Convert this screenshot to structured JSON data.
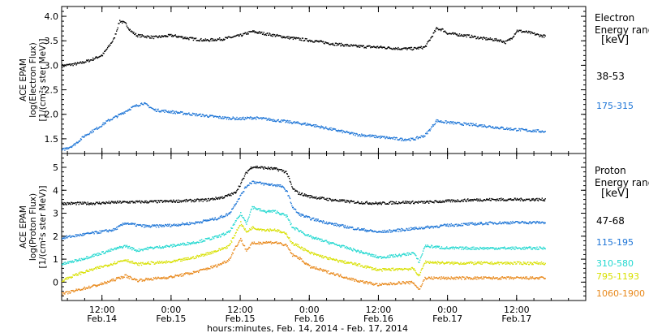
{
  "chart_data": [
    {
      "type": "scatter",
      "ylabel_lines": [
        "ACE EPAM",
        "log(Electron Flux)",
        "[1/(cm²s ster MeV)]"
      ],
      "ylim": [
        1.2,
        4.2
      ],
      "yticks": [
        "1.5",
        "2.0",
        "2.5",
        "3.0",
        "3.5",
        "4.0"
      ],
      "ytick_values": [
        1.5,
        2.0,
        2.5,
        3.0,
        3.5,
        4.0
      ],
      "legend_title_lines": [
        "Electron",
        "Energy ranges",
        "[keV]"
      ],
      "series": [
        {
          "name": "38-53",
          "color": "#000000",
          "points": [
            [
              5.0,
              3.0
            ],
            [
              8,
              3.05
            ],
            [
              10,
              3.12
            ],
            [
              12,
              3.22
            ],
            [
              13,
              3.38
            ],
            [
              14,
              3.55
            ],
            [
              15,
              3.92
            ],
            [
              16,
              3.86
            ],
            [
              17,
              3.7
            ],
            [
              18,
              3.62
            ],
            [
              21,
              3.58
            ],
            [
              24,
              3.62
            ],
            [
              27,
              3.56
            ],
            [
              30,
              3.52
            ],
            [
              33,
              3.55
            ],
            [
              36,
              3.62
            ],
            [
              38,
              3.7
            ],
            [
              40,
              3.66
            ],
            [
              44,
              3.58
            ],
            [
              48,
              3.52
            ],
            [
              52,
              3.45
            ],
            [
              56,
              3.4
            ],
            [
              60,
              3.38
            ],
            [
              64,
              3.35
            ],
            [
              66,
              3.35
            ],
            [
              68,
              3.38
            ],
            [
              69,
              3.56
            ],
            [
              70,
              3.76
            ],
            [
              71,
              3.74
            ],
            [
              72,
              3.66
            ],
            [
              75,
              3.62
            ],
            [
              78,
              3.56
            ],
            [
              81,
              3.52
            ],
            [
              82,
              3.48
            ],
            [
              83,
              3.56
            ],
            [
              84,
              3.72
            ],
            [
              86,
              3.68
            ],
            [
              88,
              3.62
            ],
            [
              89,
              3.6
            ]
          ]
        },
        {
          "name": "175-315",
          "color": "#1c74d6",
          "points": [
            [
              5.0,
              1.28
            ],
            [
              7,
              1.38
            ],
            [
              9,
              1.58
            ],
            [
              11,
              1.72
            ],
            [
              13,
              1.88
            ],
            [
              15,
              2.0
            ],
            [
              17,
              2.14
            ],
            [
              19,
              2.24
            ],
            [
              20,
              2.18
            ],
            [
              21,
              2.1
            ],
            [
              24,
              2.06
            ],
            [
              27,
              2.02
            ],
            [
              30,
              1.98
            ],
            [
              33,
              1.94
            ],
            [
              36,
              1.92
            ],
            [
              38,
              1.94
            ],
            [
              40,
              1.92
            ],
            [
              44,
              1.86
            ],
            [
              48,
              1.8
            ],
            [
              52,
              1.7
            ],
            [
              56,
              1.6
            ],
            [
              60,
              1.55
            ],
            [
              64,
              1.5
            ],
            [
              66,
              1.5
            ],
            [
              68,
              1.58
            ],
            [
              69,
              1.72
            ],
            [
              70,
              1.88
            ],
            [
              71,
              1.86
            ],
            [
              74,
              1.82
            ],
            [
              78,
              1.78
            ],
            [
              82,
              1.72
            ],
            [
              86,
              1.68
            ],
            [
              89,
              1.66
            ]
          ]
        }
      ]
    },
    {
      "type": "scatter",
      "ylabel_lines": [
        "ACE EPAM",
        "log(Proton Flux)",
        "[1/(cm²s ster MeV)]"
      ],
      "ylim": [
        -0.8,
        5.6
      ],
      "yticks": [
        "0",
        "1",
        "2",
        "3",
        "4",
        "5"
      ],
      "ytick_values": [
        0,
        1,
        2,
        3,
        4,
        5
      ],
      "legend_title_lines": [
        "Proton",
        "Energy ranges",
        "[keV]"
      ],
      "xlim": [
        5.0,
        96
      ],
      "xticks": [
        {
          "value": 12,
          "time": "12:00",
          "date": "Feb.14"
        },
        {
          "value": 24,
          "time": "0:00",
          "date": "Feb.15"
        },
        {
          "value": 36,
          "time": "12:00",
          "date": "Feb.15"
        },
        {
          "value": 48,
          "time": "0:00",
          "date": "Feb.16"
        },
        {
          "value": 60,
          "time": "12:00",
          "date": "Feb.16"
        },
        {
          "value": 72,
          "time": "0:00",
          "date": "Feb.17"
        },
        {
          "value": 84,
          "time": "12:00",
          "date": "Feb.17"
        }
      ],
      "xlabel": "hours:minutes, Feb. 14, 2014 - Feb. 17, 2014",
      "series": [
        {
          "name": "47-68",
          "color": "#000000",
          "points": [
            [
              5.0,
              3.45
            ],
            [
              10,
              3.45
            ],
            [
              15,
              3.5
            ],
            [
              20,
              3.52
            ],
            [
              25,
              3.55
            ],
            [
              30,
              3.6
            ],
            [
              33,
              3.72
            ],
            [
              35,
              3.9
            ],
            [
              36,
              4.3
            ],
            [
              37,
              4.8
            ],
            [
              38,
              5.05
            ],
            [
              40,
              5.0
            ],
            [
              42,
              4.95
            ],
            [
              43,
              4.9
            ],
            [
              44,
              4.8
            ],
            [
              45,
              4.1
            ],
            [
              46,
              3.9
            ],
            [
              48,
              3.75
            ],
            [
              52,
              3.6
            ],
            [
              56,
              3.5
            ],
            [
              60,
              3.45
            ],
            [
              64,
              3.5
            ],
            [
              68,
              3.5
            ],
            [
              72,
              3.55
            ],
            [
              76,
              3.6
            ],
            [
              80,
              3.62
            ],
            [
              84,
              3.62
            ],
            [
              89,
              3.62
            ]
          ]
        },
        {
          "name": "115-195",
          "color": "#1c74d6",
          "points": [
            [
              5.0,
              1.95
            ],
            [
              10,
              2.15
            ],
            [
              14,
              2.3
            ],
            [
              16,
              2.6
            ],
            [
              18,
              2.5
            ],
            [
              20,
              2.45
            ],
            [
              24,
              2.5
            ],
            [
              28,
              2.6
            ],
            [
              32,
              2.8
            ],
            [
              34,
              3.0
            ],
            [
              35,
              3.4
            ],
            [
              36,
              3.8
            ],
            [
              37,
              4.2
            ],
            [
              38,
              4.4
            ],
            [
              40,
              4.3
            ],
            [
              42,
              4.25
            ],
            [
              43,
              4.2
            ],
            [
              44,
              4.0
            ],
            [
              45,
              3.3
            ],
            [
              46,
              3.0
            ],
            [
              48,
              2.8
            ],
            [
              52,
              2.55
            ],
            [
              56,
              2.35
            ],
            [
              60,
              2.2
            ],
            [
              64,
              2.3
            ],
            [
              68,
              2.4
            ],
            [
              72,
              2.5
            ],
            [
              76,
              2.55
            ],
            [
              80,
              2.6
            ],
            [
              84,
              2.62
            ],
            [
              89,
              2.62
            ]
          ]
        },
        {
          "name": "310-580",
          "color": "#22d8d0",
          "points": [
            [
              5.0,
              0.8
            ],
            [
              8,
              1.0
            ],
            [
              12,
              1.3
            ],
            [
              16,
              1.6
            ],
            [
              18,
              1.4
            ],
            [
              20,
              1.5
            ],
            [
              24,
              1.6
            ],
            [
              28,
              1.75
            ],
            [
              32,
              2.0
            ],
            [
              34,
              2.2
            ],
            [
              35,
              2.6
            ],
            [
              36,
              3.0
            ],
            [
              37,
              2.6
            ],
            [
              38,
              3.3
            ],
            [
              40,
              3.1
            ],
            [
              42,
              3.1
            ],
            [
              43,
              3.0
            ],
            [
              44,
              2.9
            ],
            [
              45,
              2.4
            ],
            [
              46,
              2.3
            ],
            [
              48,
              2.0
            ],
            [
              52,
              1.7
            ],
            [
              56,
              1.4
            ],
            [
              60,
              1.1
            ],
            [
              64,
              1.2
            ],
            [
              66,
              1.3
            ],
            [
              67,
              0.9
            ],
            [
              68,
              1.6
            ],
            [
              72,
              1.5
            ],
            [
              76,
              1.5
            ],
            [
              80,
              1.5
            ],
            [
              84,
              1.5
            ],
            [
              89,
              1.5
            ]
          ]
        },
        {
          "name": "795-1193",
          "color": "#d8e000",
          "points": [
            [
              5.0,
              0.1
            ],
            [
              8,
              0.4
            ],
            [
              12,
              0.7
            ],
            [
              16,
              1.0
            ],
            [
              18,
              0.8
            ],
            [
              20,
              0.85
            ],
            [
              24,
              0.9
            ],
            [
              28,
              1.1
            ],
            [
              32,
              1.4
            ],
            [
              34,
              1.6
            ],
            [
              35,
              2.1
            ],
            [
              36,
              2.6
            ],
            [
              37,
              2.2
            ],
            [
              38,
              2.4
            ],
            [
              40,
              2.3
            ],
            [
              42,
              2.3
            ],
            [
              43,
              2.2
            ],
            [
              44,
              2.1
            ],
            [
              45,
              1.7
            ],
            [
              46,
              1.6
            ],
            [
              48,
              1.3
            ],
            [
              52,
              1.0
            ],
            [
              56,
              0.8
            ],
            [
              60,
              0.55
            ],
            [
              64,
              0.6
            ],
            [
              66,
              0.6
            ],
            [
              67,
              0.3
            ],
            [
              68,
              0.9
            ],
            [
              72,
              0.85
            ],
            [
              76,
              0.85
            ],
            [
              80,
              0.85
            ],
            [
              84,
              0.85
            ],
            [
              89,
              0.85
            ]
          ]
        },
        {
          "name": "1060-1900",
          "color": "#e8881a",
          "points": [
            [
              5.0,
              -0.5
            ],
            [
              8,
              -0.3
            ],
            [
              12,
              -0.05
            ],
            [
              16,
              0.3
            ],
            [
              18,
              0.1
            ],
            [
              20,
              0.15
            ],
            [
              24,
              0.25
            ],
            [
              28,
              0.45
            ],
            [
              32,
              0.75
            ],
            [
              34,
              1.0
            ],
            [
              35,
              1.5
            ],
            [
              36,
              1.9
            ],
            [
              37,
              1.4
            ],
            [
              38,
              1.7
            ],
            [
              40,
              1.75
            ],
            [
              42,
              1.75
            ],
            [
              43,
              1.7
            ],
            [
              44,
              1.6
            ],
            [
              45,
              1.2
            ],
            [
              46,
              1.1
            ],
            [
              48,
              0.7
            ],
            [
              52,
              0.4
            ],
            [
              56,
              0.1
            ],
            [
              60,
              -0.1
            ],
            [
              64,
              0.0
            ],
            [
              66,
              0.0
            ],
            [
              67,
              -0.3
            ],
            [
              68,
              0.2
            ],
            [
              72,
              0.2
            ],
            [
              76,
              0.2
            ],
            [
              80,
              0.2
            ],
            [
              84,
              0.2
            ],
            [
              89,
              0.2
            ]
          ]
        }
      ]
    }
  ]
}
